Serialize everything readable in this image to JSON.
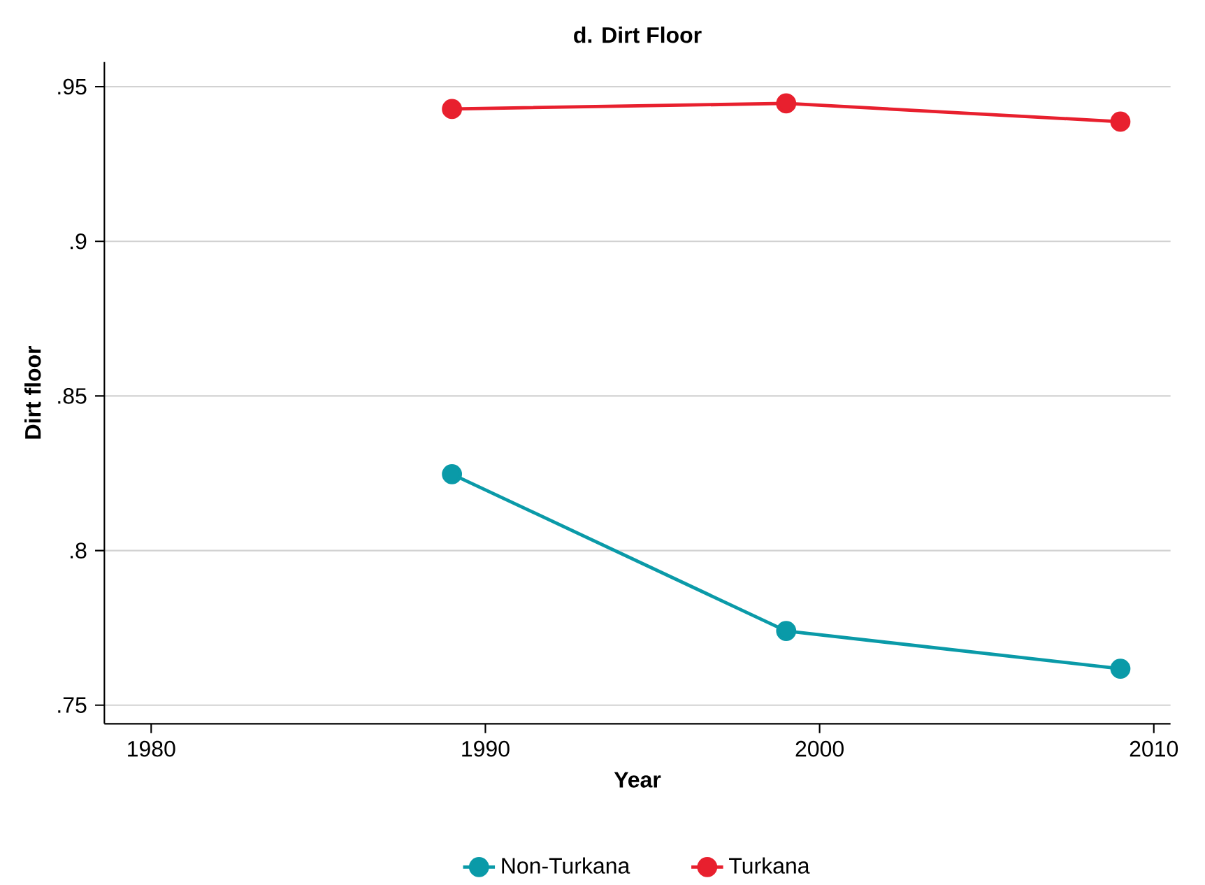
{
  "chart_data": {
    "type": "line",
    "title": "d. Dirt Floor",
    "xlabel": "Year",
    "ylabel": "Dirt floor",
    "x": [
      1989,
      1999,
      2009
    ],
    "series": [
      {
        "name": "Non-Turkana",
        "color": "#0a9aa8",
        "values": [
          0.8247,
          0.774,
          0.7618
        ]
      },
      {
        "name": "Turkana",
        "color": "#e8202e",
        "values": [
          0.9428,
          0.9446,
          0.9387
        ]
      }
    ],
    "xlim": [
      1978.6,
      2010.5
    ],
    "xticks": [
      1980,
      1990,
      2000,
      2010
    ],
    "ylim": [
      0.744,
      0.958
    ],
    "yticks": [
      {
        "value": 0.75,
        "label": ".75"
      },
      {
        "value": 0.8,
        "label": ".8"
      },
      {
        "value": 0.85,
        "label": ".85"
      },
      {
        "value": 0.9,
        "label": ".9"
      },
      {
        "value": 0.95,
        "label": ".95"
      }
    ],
    "grid": "y",
    "legend": "bottom",
    "marker": "circle",
    "line_style": "solid"
  }
}
